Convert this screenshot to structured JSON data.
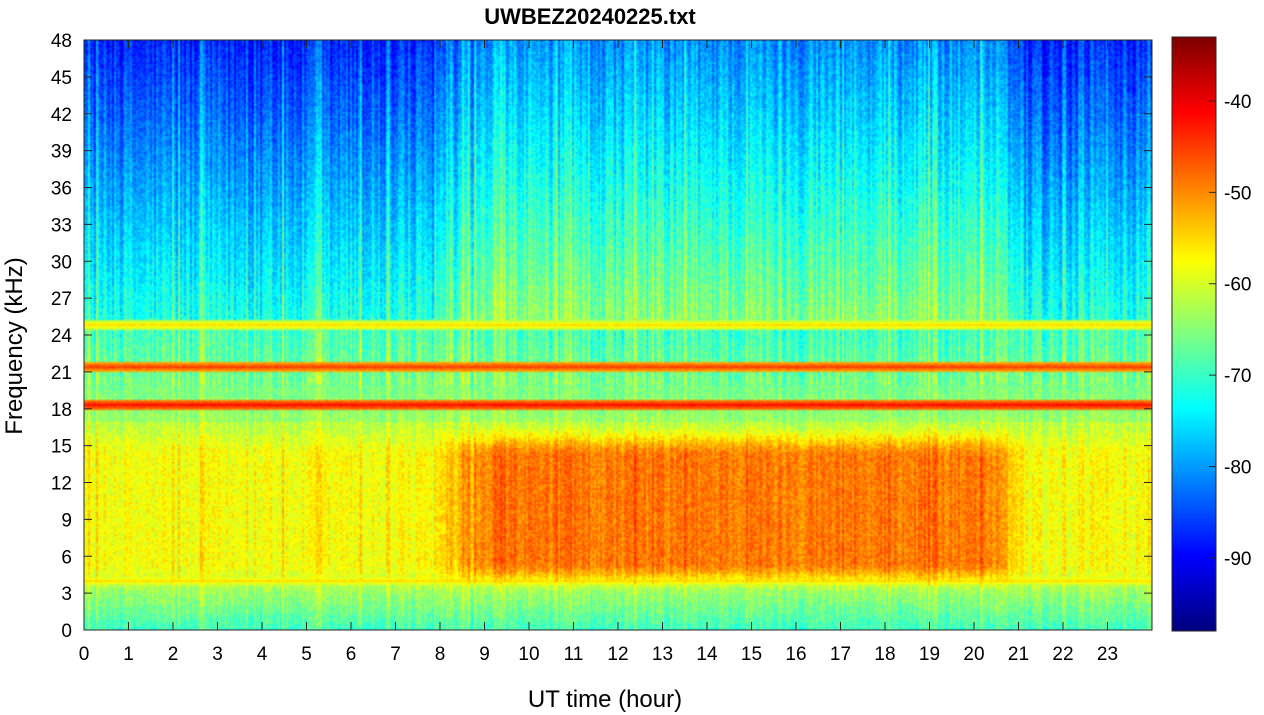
{
  "chart_data": {
    "type": "heatmap",
    "title": "UWBEZ20240225.txt",
    "xlabel": "UT time (hour)",
    "ylabel": "Frequency (kHz)",
    "xlim": [
      0,
      24
    ],
    "ylim": [
      0,
      48
    ],
    "x_ticks": [
      "0",
      "1",
      "2",
      "3",
      "4",
      "5",
      "6",
      "7",
      "8",
      "9",
      "10",
      "11",
      "12",
      "13",
      "14",
      "15",
      "16",
      "17",
      "18",
      "19",
      "20",
      "21",
      "22",
      "23"
    ],
    "y_ticks": [
      "0",
      "3",
      "6",
      "9",
      "12",
      "15",
      "18",
      "21",
      "24",
      "27",
      "30",
      "33",
      "36",
      "39",
      "42",
      "45",
      "48"
    ],
    "colorbar": {
      "colormap": "jet",
      "range": [
        -98,
        -33
      ],
      "ticks": [
        "-40",
        "-50",
        "-60",
        "-70",
        "-80",
        "-90"
      ]
    },
    "features": [
      {
        "kind": "narrowband_line",
        "freq_khz": 18.3,
        "level_db": -42
      },
      {
        "kind": "narrowband_line",
        "freq_khz": 21.4,
        "level_db": -45
      },
      {
        "kind": "narrowband_line",
        "freq_khz": 24.8,
        "level_db": -55
      },
      {
        "kind": "narrowband_line",
        "freq_khz": 4.0,
        "level_db": -55
      },
      {
        "kind": "broadband_band",
        "freq_khz_range": [
          4,
          16
        ],
        "time_hour_range": [
          8,
          21
        ],
        "level_db": -52
      }
    ]
  }
}
